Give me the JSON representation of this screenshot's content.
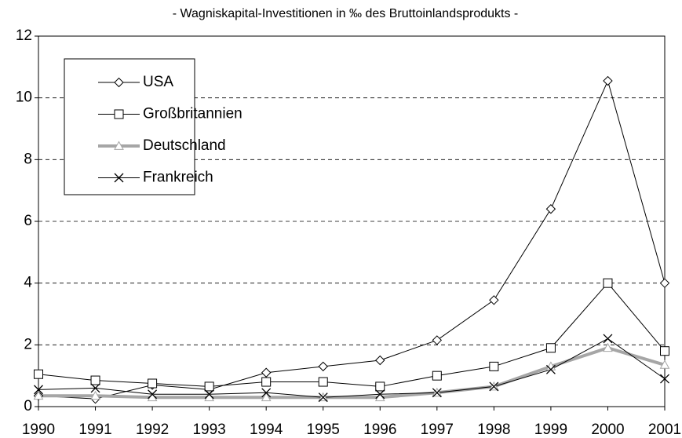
{
  "chart_data": {
    "type": "line",
    "title": "- Wagniskapital-Investitionen in ‰ des Bruttoinlandsprodukts -",
    "categories": [
      "1990",
      "1991",
      "1992",
      "1993",
      "1994",
      "1995",
      "1996",
      "1997",
      "1998",
      "1999",
      "2000",
      "2001"
    ],
    "series": [
      {
        "name": "USA",
        "color": "#000000",
        "marker": "diamond",
        "width": 1,
        "values": [
          0.35,
          0.25,
          0.7,
          0.55,
          1.1,
          1.3,
          1.5,
          2.15,
          3.45,
          6.4,
          10.55,
          4.0
        ]
      },
      {
        "name": "Großbritannien",
        "color": "#000000",
        "marker": "square",
        "width": 1,
        "values": [
          1.05,
          0.85,
          0.75,
          0.65,
          0.8,
          0.8,
          0.65,
          1.0,
          1.3,
          1.9,
          4.0,
          1.8
        ]
      },
      {
        "name": "Deutschland",
        "color": "#a6a6a6",
        "marker": "triangle",
        "width": 4,
        "values": [
          0.35,
          0.35,
          0.3,
          0.3,
          0.3,
          0.3,
          0.3,
          0.45,
          0.65,
          1.3,
          1.9,
          1.35
        ]
      },
      {
        "name": "Frankreich",
        "color": "#000000",
        "marker": "x",
        "width": 1,
        "values": [
          0.55,
          0.6,
          0.4,
          0.4,
          0.45,
          0.3,
          0.4,
          0.45,
          0.65,
          1.2,
          2.2,
          0.9
        ]
      }
    ],
    "ylim": [
      0,
      12
    ],
    "yticks": [
      0,
      2,
      4,
      6,
      8,
      10,
      12
    ],
    "grid": true
  }
}
